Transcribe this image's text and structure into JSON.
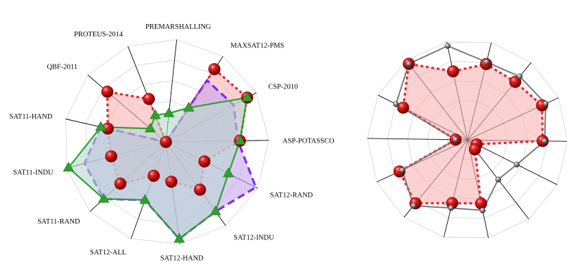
{
  "chart_data": [
    {
      "type": "radar",
      "categories": [
        "PREMARSHALLING",
        "MAXSAT12-PMS",
        "CSP-2010",
        "ASP-POTASSCO",
        "SAT12-RAND",
        "SAT12-INDU",
        "SAT12-HAND",
        "SAT12-ALL",
        "SAT11-RAND",
        "SAT11-INDU",
        "SAT11-HAND",
        "QBF-2011",
        "PROTEUS-2014"
      ],
      "grid": true,
      "series": [
        {
          "values": [
            0.0,
            0.85,
            0.9,
            0.72,
            0.42,
            0.57,
            0.39,
            0.35,
            0.6,
            0.55,
            0.58,
            0.75,
            0.45
          ],
          "color": "#e8232a",
          "fill": "#f8b3b3",
          "marker": "sphere"
        },
        {
          "values": [
            0.0,
            0.72,
            0.75,
            0.7,
            0.98,
            0.83,
            0.95,
            0.6,
            0.82,
            0.82,
            0.65,
            0.0,
            0.0
          ],
          "color": "#7a2cf0",
          "fill": "#c7a3f0",
          "marker": "none"
        },
        {
          "values": [
            0.28,
            0.4,
            0.9,
            0.72,
            0.68,
            0.83,
            0.95,
            0.6,
            0.82,
            0.98,
            0.65,
            0.2,
            0.28
          ],
          "color": "#2ea02e",
          "fill": "#b8d8d0",
          "marker": "triangle"
        }
      ]
    },
    {
      "type": "radar",
      "categories": [
        "",
        "",
        "",
        "",
        "",
        "",
        "",
        "",
        "",
        "",
        "",
        "",
        "",
        ""
      ],
      "grid": true,
      "series": [
        {
          "values": [
            0.7,
            0.78,
            0.75,
            0.82,
            0.75,
            0.1,
            0.12,
            0.65,
            0.65,
            0.82,
            0.75,
            0.12,
            0.72,
            0.96
          ],
          "color": "#e8232a",
          "fill": "#f8b3b3",
          "marker": "sphere"
        },
        {
          "values": [
            0.96,
            0.8,
            0.82,
            0.86,
            0.77,
            0.55,
            0.5,
            0.72,
            0.7,
            0.85,
            0.72,
            0.12,
            0.8,
            0.96
          ],
          "color": "#7a7a7a",
          "fill": "none",
          "marker": "small-sphere"
        }
      ]
    }
  ]
}
